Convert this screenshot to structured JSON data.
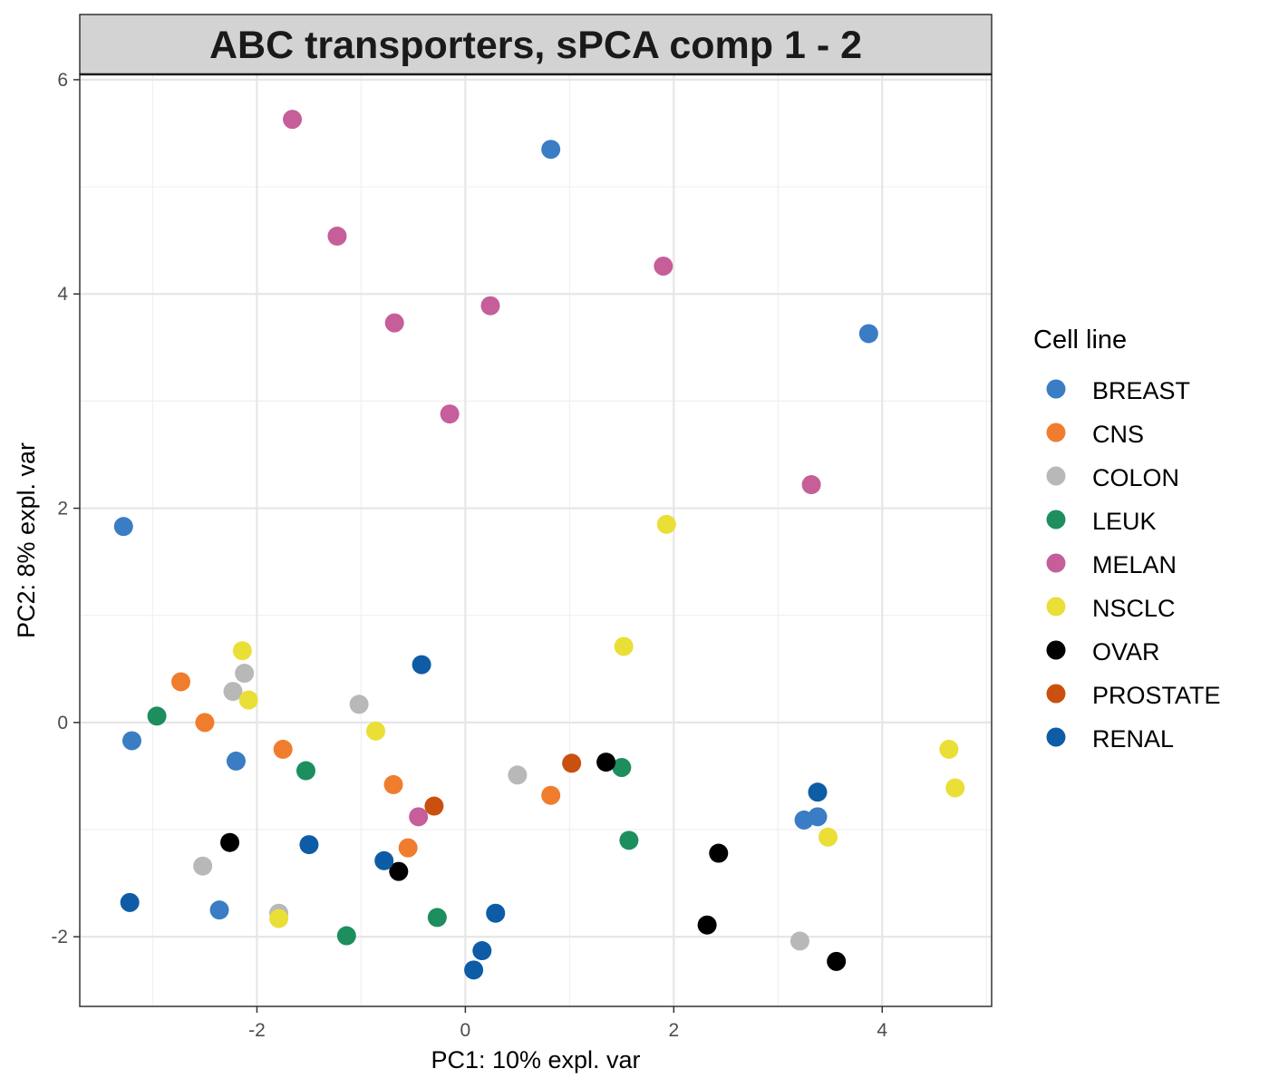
{
  "chart_data": {
    "type": "scatter",
    "title": "ABC transporters, sPCA comp 1 - 2",
    "xlabel": "PC1: 10% expl. var",
    "ylabel": "PC2: 8% expl. var",
    "xlim": [
      -3.7,
      5.05
    ],
    "ylim": [
      -2.65,
      6.05
    ],
    "x_ticks": [
      -2,
      0,
      2,
      4
    ],
    "y_ticks": [
      -2,
      0,
      2,
      4,
      6
    ],
    "x_tick_labels": [
      "-2",
      "0",
      "2",
      "4"
    ],
    "y_tick_labels": [
      "-2",
      "0",
      "2",
      "4",
      "6"
    ],
    "grid": true,
    "legend_position": "right",
    "legend_title": "Cell line",
    "series": [
      {
        "name": "BREAST",
        "color": "#3A7DC4",
        "points": [
          [
            0.82,
            5.35
          ],
          [
            3.87,
            3.63
          ],
          [
            -3.28,
            1.83
          ],
          [
            -3.2,
            -0.17
          ],
          [
            -2.2,
            -0.36
          ],
          [
            -2.36,
            -1.75
          ],
          [
            3.25,
            -0.91
          ],
          [
            3.38,
            -0.88
          ]
        ]
      },
      {
        "name": "CNS",
        "color": "#F07D2D",
        "points": [
          [
            -2.73,
            0.38
          ],
          [
            -2.5,
            0.0
          ],
          [
            -1.75,
            -0.25
          ],
          [
            -0.69,
            -0.58
          ],
          [
            0.82,
            -0.68
          ],
          [
            -0.55,
            -1.17
          ]
        ]
      },
      {
        "name": "COLON",
        "color": "#B8B8B8",
        "points": [
          [
            -2.12,
            0.46
          ],
          [
            -2.23,
            0.29
          ],
          [
            -1.02,
            0.17
          ],
          [
            0.5,
            -0.49
          ],
          [
            -2.52,
            -1.34
          ],
          [
            -1.79,
            -1.78
          ],
          [
            3.21,
            -2.04
          ]
        ]
      },
      {
        "name": "LEUK",
        "color": "#1D8E5E",
        "points": [
          [
            -2.96,
            0.06
          ],
          [
            -1.53,
            -0.45
          ],
          [
            1.5,
            -0.42
          ],
          [
            1.57,
            -1.1
          ],
          [
            -1.14,
            -1.99
          ],
          [
            -0.27,
            -1.82
          ]
        ]
      },
      {
        "name": "MELAN",
        "color": "#C65E9A",
        "points": [
          [
            -1.66,
            5.63
          ],
          [
            -1.23,
            4.54
          ],
          [
            1.9,
            4.26
          ],
          [
            -0.68,
            3.73
          ],
          [
            0.24,
            3.89
          ],
          [
            -0.15,
            2.88
          ],
          [
            3.32,
            2.22
          ],
          [
            -0.45,
            -0.88
          ]
        ]
      },
      {
        "name": "NSCLC",
        "color": "#EADF36",
        "points": [
          [
            1.93,
            1.85
          ],
          [
            1.52,
            0.71
          ],
          [
            -2.14,
            0.67
          ],
          [
            -2.08,
            0.21
          ],
          [
            -0.86,
            -0.08
          ],
          [
            4.64,
            -0.25
          ],
          [
            4.7,
            -0.61
          ],
          [
            3.48,
            -1.07
          ],
          [
            -1.79,
            -1.83
          ]
        ]
      },
      {
        "name": "OVAR",
        "color": "#000000",
        "points": [
          [
            1.35,
            -0.37
          ],
          [
            -2.26,
            -1.12
          ],
          [
            -0.64,
            -1.39
          ],
          [
            2.43,
            -1.22
          ],
          [
            2.32,
            -1.89
          ],
          [
            3.56,
            -2.23
          ]
        ]
      },
      {
        "name": "PROSTATE",
        "color": "#C9500E",
        "points": [
          [
            1.02,
            -0.38
          ],
          [
            -0.3,
            -0.78
          ]
        ]
      },
      {
        "name": "RENAL",
        "color": "#0E5CA6",
        "points": [
          [
            -0.42,
            0.54
          ],
          [
            3.38,
            -0.65
          ],
          [
            -1.5,
            -1.14
          ],
          [
            -0.78,
            -1.29
          ],
          [
            0.29,
            -1.78
          ],
          [
            -3.22,
            -1.68
          ],
          [
            0.16,
            -2.13
          ],
          [
            0.08,
            -2.31
          ]
        ]
      }
    ]
  }
}
